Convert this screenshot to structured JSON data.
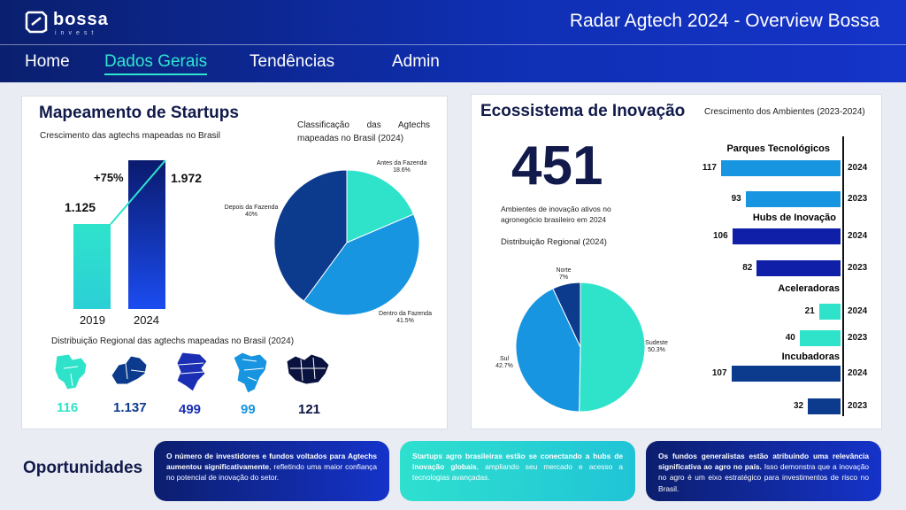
{
  "header": {
    "logo_word": "bossa",
    "logo_sub": "invest",
    "title": "Radar Agtech 2024 - Overview Bossa"
  },
  "nav": [
    {
      "label": "Home",
      "active": false
    },
    {
      "label": "Dados Gerais",
      "active": true
    },
    {
      "label": "Tendências",
      "active": false
    },
    {
      "label": "Admin",
      "active": false
    }
  ],
  "startups": {
    "title": "Mapeamento de Startups",
    "growth_subtitle": "Crescimento das agtechs mapeadas no Brasil",
    "growth_change": "+75%",
    "growth_bars": [
      {
        "year": "2019",
        "label": "1.125",
        "value": 1125
      },
      {
        "year": "2024",
        "label": "1.972",
        "value": 1972
      }
    ],
    "classification_title": "Classificação das Agtechs mapeadas no Brasil (2024)",
    "classification": [
      {
        "name": "Antes da Fazenda",
        "pct_label": "18.6%",
        "value": 18.6,
        "color": "#2fe3cb"
      },
      {
        "name": "Dentro da Fazenda",
        "pct_label": "41.5%",
        "value": 41.5,
        "color": "#1895e0"
      },
      {
        "name": "Depois da Fazenda",
        "pct_label": "40%",
        "value": 39.9,
        "color": "#0c3a8c"
      }
    ],
    "regional_title": "Distribuição Regional das agtechs mapeadas no Brasil (2024)",
    "regions": [
      {
        "value": "116",
        "color": "#2fe3cb",
        "icon": "centro-oeste-map-icon"
      },
      {
        "value": "1.137",
        "color": "#0c3a8c",
        "icon": "sudeste-map-icon"
      },
      {
        "value": "499",
        "color": "#1a2fb3",
        "icon": "sul-map-icon"
      },
      {
        "value": "99",
        "color": "#1895e0",
        "icon": "nordeste-map-icon"
      },
      {
        "value": "121",
        "color": "#0a1240",
        "icon": "norte-map-icon"
      }
    ]
  },
  "ecosystem": {
    "title": "Ecossistema de Inovação",
    "big_number": "451",
    "big_caption": "Ambientes de inovação ativos no agronegócio brasileiro em 2024",
    "regional_title": "Distribuição Regional (2024)",
    "regional": [
      {
        "name": "Sudeste",
        "pct_label": "50.3%",
        "value": 50.3,
        "color": "#2fe3cb"
      },
      {
        "name": "Sul",
        "pct_label": "42.7%",
        "value": 42.7,
        "color": "#1895e0"
      },
      {
        "name": "Norte",
        "pct_label": "7%",
        "value": 7.0,
        "color": "#0c3a8c"
      }
    ],
    "growth_title": "Crescimento dos Ambientes (2023-2024)",
    "groups": [
      {
        "name": "Parques Tecnológicos",
        "color": "#1895e0",
        "bars": [
          {
            "year": "2024",
            "value": 117
          },
          {
            "year": "2023",
            "value": 93
          }
        ]
      },
      {
        "name": "Hubs de Inovação",
        "color": "#0f1fa8",
        "bars": [
          {
            "year": "2024",
            "value": 106
          },
          {
            "year": "2023",
            "value": 82
          }
        ]
      },
      {
        "name": "Aceleradoras",
        "color": "#2fe3cb",
        "bars": [
          {
            "year": "2024",
            "value": 21
          },
          {
            "year": "2023",
            "value": 40
          }
        ]
      },
      {
        "name": "Incubadoras",
        "color": "#0c3a8c",
        "bars": [
          {
            "year": "2024",
            "value": 107
          },
          {
            "year": "2023",
            "value": 32
          }
        ]
      }
    ]
  },
  "opportunities": {
    "title": "Oportunidades",
    "cards": [
      {
        "bold": "O número de investidores e fundos voltados para Agtechs aumentou significativamente",
        "text": ", refletindo uma maior confiança no potencial de inovação do setor."
      },
      {
        "bold": "Startups agro brasileiras estão se conectando a hubs de inovação globais",
        "text": ", ampliando seu mercado e acesso a tecnologias avançadas."
      },
      {
        "bold": "Os fundos generalistas estão atribuindo uma relevância significativa ao agro no país.",
        "text": " Isso demonstra que a inovação no agro é um eixo estratégico para investimentos de risco no Brasil."
      }
    ]
  }
}
